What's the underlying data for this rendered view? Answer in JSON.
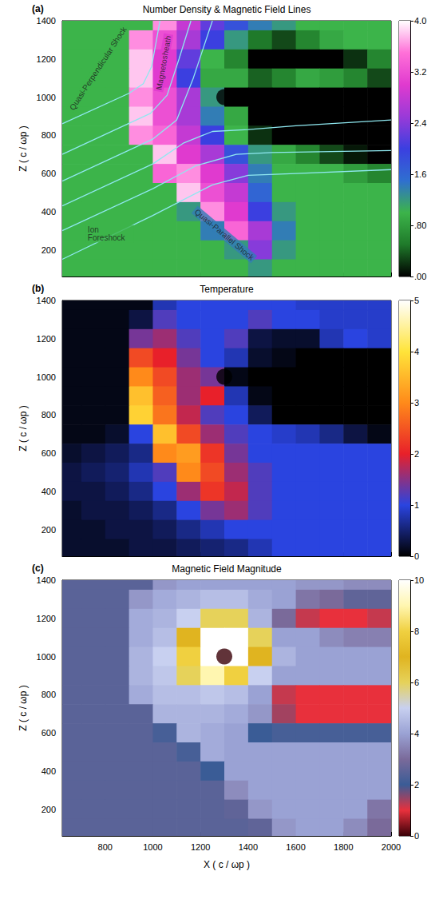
{
  "chart_data": [
    {
      "type": "heatmap",
      "panel": "(a)",
      "title": "Number Density & Magnetic Field Lines",
      "ylabel": "Z ( c / ωp )",
      "xlim": [
        620,
        2000
      ],
      "xticks": [
        800,
        1000,
        1200,
        1400,
        1600,
        1800,
        2000
      ],
      "ylim": [
        60,
        1400
      ],
      "yticks": [
        200,
        400,
        600,
        800,
        1000,
        1200,
        1400
      ],
      "tick_labels": "y",
      "x": [
        650,
        750,
        850,
        950,
        1050,
        1150,
        1250,
        1350,
        1450,
        1550,
        1650,
        1750,
        1850,
        1950
      ],
      "z": [
        1400,
        1300,
        1200,
        1100,
        1000,
        900,
        800,
        700,
        600,
        500,
        400,
        300,
        200,
        100
      ],
      "cells": [
        [
          1.0,
          1.0,
          1.0,
          1.0,
          3.6,
          2.8,
          2.2,
          1.8,
          1.4,
          1.2,
          1.0,
          1.0,
          1.0,
          1.0
        ],
        [
          1.0,
          1.0,
          1.0,
          3.6,
          3.2,
          2.6,
          2.0,
          1.2,
          0.5,
          0.3,
          0.6,
          0.9,
          1.0,
          1.0
        ],
        [
          1.0,
          1.0,
          1.0,
          3.8,
          3.0,
          2.2,
          1.0,
          0.6,
          0.0,
          0.0,
          0.0,
          0.0,
          0.2,
          0.6
        ],
        [
          1.0,
          1.0,
          1.0,
          3.8,
          3.0,
          2.0,
          0.9,
          0.9,
          0.4,
          0.6,
          0.9,
          0.8,
          0.6,
          0.3
        ],
        [
          1.0,
          1.0,
          1.0,
          3.6,
          3.2,
          2.6,
          1.2,
          0.0,
          0.0,
          0.0,
          0.0,
          0.0,
          0.0,
          0.0
        ],
        [
          1.0,
          1.0,
          1.0,
          3.8,
          3.2,
          2.6,
          1.4,
          0.9,
          0.0,
          0.0,
          0.0,
          0.0,
          0.0,
          0.0
        ],
        [
          1.0,
          1.0,
          1.0,
          3.6,
          3.4,
          2.8,
          2.0,
          1.0,
          0.2,
          0.0,
          0.0,
          0.0,
          0.0,
          0.0
        ],
        [
          1.0,
          1.0,
          1.0,
          1.0,
          3.8,
          3.0,
          2.6,
          1.8,
          1.2,
          0.9,
          0.6,
          0.3,
          0.1,
          0.0
        ],
        [
          1.0,
          1.0,
          1.0,
          1.0,
          3.4,
          3.6,
          3.0,
          2.4,
          1.4,
          1.0,
          1.0,
          1.0,
          0.8,
          0.6
        ],
        [
          1.0,
          1.0,
          1.0,
          1.0,
          1.0,
          3.8,
          3.2,
          2.8,
          1.6,
          1.0,
          1.0,
          1.0,
          1.0,
          1.0
        ],
        [
          1.0,
          1.0,
          1.0,
          1.0,
          1.0,
          1.2,
          3.6,
          3.0,
          2.0,
          1.2,
          1.0,
          1.0,
          1.0,
          1.0
        ],
        [
          1.0,
          1.0,
          1.0,
          1.0,
          1.0,
          1.0,
          1.4,
          3.4,
          2.6,
          1.4,
          1.0,
          1.0,
          1.0,
          1.0
        ],
        [
          1.0,
          1.0,
          1.0,
          1.0,
          1.0,
          1.0,
          1.0,
          1.2,
          2.4,
          1.2,
          1.0,
          1.0,
          1.0,
          1.0
        ],
        [
          1.0,
          1.0,
          1.0,
          1.0,
          1.0,
          1.0,
          1.0,
          1.0,
          1.2,
          1.0,
          1.0,
          1.0,
          1.0,
          1.0
        ]
      ],
      "colorbar": {
        "range": [
          0,
          4
        ],
        "ticks": [
          {
            "value": 0,
            "label": ".00"
          },
          {
            "value": 0.8,
            "label": ".80"
          },
          1.6,
          2.4,
          3.2,
          {
            "value": 4,
            "label": "4.0"
          }
        ],
        "colors": [
          "#000000",
          "#1f7a2a",
          "#3cb44a",
          "#2f6fd0",
          "#3b3fe0",
          "#9a3ad8",
          "#e03acf",
          "#ff70d8",
          "#ffffff"
        ]
      },
      "body": {
        "x": 1300,
        "z": 1000,
        "value": 0
      },
      "field_lines": {
        "color": "#8fe8f0",
        "lines": [
          [
            [
              620,
              860
            ],
            [
              900,
              1020
            ],
            [
              960,
              1070
            ],
            [
              995,
              1160
            ],
            [
              1030,
              1400
            ]
          ],
          [
            [
              620,
              700
            ],
            [
              990,
              915
            ],
            [
              1060,
              1010
            ],
            [
              1110,
              1200
            ],
            [
              1160,
              1400
            ]
          ],
          [
            [
              620,
              560
            ],
            [
              1000,
              780
            ],
            [
              1100,
              880
            ],
            [
              1170,
              1100
            ],
            [
              1250,
              1400
            ]
          ],
          [
            [
              620,
              430
            ],
            [
              1000,
              650
            ],
            [
              1130,
              760
            ],
            [
              1250,
              820
            ],
            [
              1400,
              830
            ],
            [
              1600,
              850
            ],
            [
              2000,
              880
            ]
          ],
          [
            [
              620,
              300
            ],
            [
              1000,
              520
            ],
            [
              1180,
              640
            ],
            [
              1350,
              700
            ],
            [
              1500,
              710
            ],
            [
              2000,
              720
            ]
          ],
          [
            [
              620,
              150
            ],
            [
              1000,
              380
            ],
            [
              1250,
              540
            ],
            [
              1400,
              590
            ],
            [
              1600,
              600
            ],
            [
              2000,
              620
            ]
          ]
        ]
      },
      "annotations": [
        {
          "text": "Quasi-Perpendicular Shock",
          "x": 770,
          "z": 1150
        },
        {
          "text": "Magnetosheath",
          "x": 1045,
          "z": 1180
        },
        {
          "text": "Quasi-Parallel Shock",
          "x": 1300,
          "z": 280
        },
        {
          "text": "Ion Foreshock",
          "x": 720,
          "z": 284
        }
      ]
    },
    {
      "type": "heatmap",
      "panel": "(b)",
      "title": "Temperature",
      "ylabel": "Z ( c / ωp )",
      "xlim": [
        620,
        2000
      ],
      "xticks": [
        800,
        1000,
        1200,
        1400,
        1600,
        1800,
        2000
      ],
      "ylim": [
        60,
        1400
      ],
      "yticks": [
        200,
        400,
        600,
        800,
        1000,
        1200,
        1400
      ],
      "tick_labels": "y",
      "x": [
        650,
        750,
        850,
        950,
        1050,
        1150,
        1250,
        1350,
        1450,
        1550,
        1650,
        1750,
        1850,
        1950
      ],
      "z": [
        1400,
        1300,
        1200,
        1100,
        1000,
        900,
        800,
        700,
        600,
        500,
        400,
        300,
        200,
        100
      ],
      "cells": [
        [
          0.1,
          0.1,
          0.1,
          0.1,
          0.8,
          1.0,
          1.0,
          1.0,
          1.0,
          1.0,
          0.9,
          0.9,
          0.9,
          0.9
        ],
        [
          0.1,
          0.1,
          0.1,
          0.3,
          1.2,
          1.0,
          1.0,
          1.0,
          1.2,
          1.0,
          1.0,
          0.9,
          0.9,
          0.9
        ],
        [
          0.1,
          0.1,
          0.1,
          1.4,
          1.6,
          1.2,
          1.0,
          1.2,
          0.3,
          0.2,
          0.2,
          0.8,
          1.0,
          0.9
        ],
        [
          0.1,
          0.1,
          0.1,
          2.4,
          2.0,
          1.4,
          1.0,
          0.8,
          0.2,
          0.1,
          0.0,
          0.0,
          0.0,
          0.0
        ],
        [
          0.1,
          0.1,
          0.1,
          3.0,
          2.4,
          1.6,
          1.4,
          0.1,
          0.0,
          0.0,
          0.0,
          0.0,
          0.0,
          0.0
        ],
        [
          0.1,
          0.1,
          0.1,
          3.6,
          2.6,
          1.6,
          2.0,
          0.8,
          0.1,
          0.0,
          0.0,
          0.0,
          0.0,
          0.0
        ],
        [
          0.1,
          0.1,
          0.1,
          3.8,
          2.8,
          1.8,
          1.2,
          1.0,
          0.4,
          0.0,
          0.0,
          0.0,
          0.0,
          0.0
        ],
        [
          0.1,
          0.1,
          0.2,
          1.0,
          3.6,
          2.4,
          1.6,
          1.2,
          1.0,
          0.9,
          0.8,
          0.6,
          0.3,
          0.1
        ],
        [
          0.2,
          0.3,
          0.4,
          0.6,
          3.0,
          3.2,
          2.2,
          1.4,
          1.0,
          1.0,
          1.0,
          1.0,
          1.0,
          1.0
        ],
        [
          0.3,
          0.4,
          0.5,
          0.8,
          1.2,
          3.0,
          2.4,
          1.6,
          1.2,
          1.0,
          1.0,
          1.0,
          1.0,
          1.0
        ],
        [
          0.3,
          0.3,
          0.4,
          0.6,
          1.0,
          1.6,
          2.2,
          1.8,
          1.2,
          1.0,
          1.0,
          1.0,
          1.0,
          1.0
        ],
        [
          0.2,
          0.3,
          0.3,
          0.4,
          0.6,
          1.0,
          1.4,
          1.6,
          1.2,
          1.0,
          1.0,
          1.0,
          1.0,
          1.0
        ],
        [
          0.2,
          0.2,
          0.3,
          0.3,
          0.4,
          0.6,
          0.8,
          1.0,
          1.0,
          1.0,
          1.0,
          1.0,
          1.0,
          1.0
        ],
        [
          0.2,
          0.2,
          0.2,
          0.3,
          0.3,
          0.4,
          0.5,
          0.6,
          0.8,
          1.0,
          1.0,
          1.0,
          1.0,
          1.0
        ]
      ],
      "colorbar": {
        "range": [
          0,
          5
        ],
        "ticks": [
          0,
          1,
          2,
          3,
          4,
          5
        ],
        "colors": [
          "#000000",
          "#2a44e0",
          "#e8202a",
          "#ff8a1a",
          "#ffe43a",
          "#ffffff"
        ]
      },
      "body": {
        "x": 1300,
        "z": 1000,
        "value": 0
      }
    },
    {
      "type": "heatmap",
      "panel": "(c)",
      "title": "Magnetic Field Magnitude",
      "xlabel": "X ( c / ωp )",
      "ylabel": "Z ( c / ωp )",
      "xlim": [
        620,
        2000
      ],
      "xticks": [
        800,
        1000,
        1200,
        1400,
        1600,
        1800,
        2000
      ],
      "ylim": [
        60,
        1400
      ],
      "yticks": [
        200,
        400,
        600,
        800,
        1000,
        1200,
        1400
      ],
      "x": [
        650,
        750,
        850,
        950,
        1050,
        1150,
        1250,
        1350,
        1450,
        1550,
        1650,
        1750,
        1850,
        1950
      ],
      "z": [
        1400,
        1300,
        1200,
        1100,
        1000,
        900,
        800,
        700,
        600,
        500,
        400,
        300,
        200,
        100
      ],
      "cells": [
        [
          2.5,
          2.5,
          2.5,
          2.5,
          3.8,
          4.0,
          4.0,
          4.0,
          4.0,
          4.0,
          3.8,
          3.8,
          3.6,
          3.6
        ],
        [
          2.5,
          2.5,
          2.5,
          3.8,
          4.2,
          4.4,
          4.6,
          4.6,
          4.2,
          4.0,
          3.2,
          3.0,
          2.6,
          2.6
        ],
        [
          2.5,
          2.5,
          2.5,
          4.2,
          4.4,
          5.0,
          6.0,
          6.0,
          4.4,
          3.0,
          1.2,
          1.0,
          1.0,
          1.2
        ],
        [
          2.5,
          2.5,
          2.5,
          4.2,
          4.6,
          7.0,
          10,
          10,
          6.0,
          4.0,
          4.0,
          3.6,
          3.4,
          3.4
        ],
        [
          2.5,
          2.5,
          2.5,
          4.4,
          5.0,
          8.0,
          10,
          10,
          7.0,
          4.4,
          4.0,
          4.0,
          4.0,
          4.0
        ],
        [
          2.5,
          2.5,
          2.5,
          4.4,
          4.8,
          6.0,
          9.0,
          8.0,
          5.0,
          4.0,
          4.0,
          4.0,
          4.0,
          4.0
        ],
        [
          2.5,
          2.5,
          2.5,
          4.2,
          4.6,
          4.6,
          4.8,
          4.6,
          4.0,
          1.2,
          1.0,
          1.0,
          1.0,
          1.0
        ],
        [
          2.5,
          2.5,
          2.5,
          2.5,
          4.4,
          4.4,
          4.4,
          4.2,
          3.8,
          1.4,
          1.0,
          1.0,
          1.0,
          1.0
        ],
        [
          2.5,
          2.5,
          2.5,
          2.5,
          2.2,
          4.4,
          4.2,
          4.0,
          2.0,
          2.2,
          2.2,
          2.2,
          2.2,
          2.2
        ],
        [
          2.5,
          2.5,
          2.5,
          2.5,
          2.5,
          2.2,
          4.2,
          4.0,
          4.0,
          4.0,
          4.0,
          4.0,
          4.0,
          4.0
        ],
        [
          2.5,
          2.5,
          2.5,
          2.5,
          2.5,
          2.5,
          2.0,
          4.0,
          4.0,
          4.0,
          4.0,
          4.0,
          4.0,
          4.0
        ],
        [
          2.5,
          2.5,
          2.5,
          2.5,
          2.5,
          2.5,
          2.5,
          3.6,
          4.0,
          4.0,
          4.0,
          4.0,
          4.0,
          4.0
        ],
        [
          2.5,
          2.5,
          2.5,
          2.5,
          2.5,
          2.5,
          2.5,
          2.6,
          3.8,
          4.0,
          4.0,
          4.0,
          4.0,
          3.2
        ],
        [
          2.5,
          2.5,
          2.5,
          2.5,
          2.5,
          2.5,
          2.5,
          2.5,
          2.6,
          3.8,
          4.0,
          4.0,
          3.6,
          3.0
        ]
      ],
      "colorbar": {
        "range": [
          0,
          10
        ],
        "ticks": [
          0,
          2,
          4,
          6,
          8,
          10
        ],
        "colors": [
          "#3a0008",
          "#e8303c",
          "#3a5c96",
          "#7a6a9a",
          "#9aa2d4",
          "#c8d0f0",
          "#e6d25a",
          "#e0b420",
          "#f0d040",
          "#fff6b0",
          "#ffffff"
        ]
      },
      "body": {
        "x": 1300,
        "z": 1000,
        "value": 0
      }
    }
  ]
}
